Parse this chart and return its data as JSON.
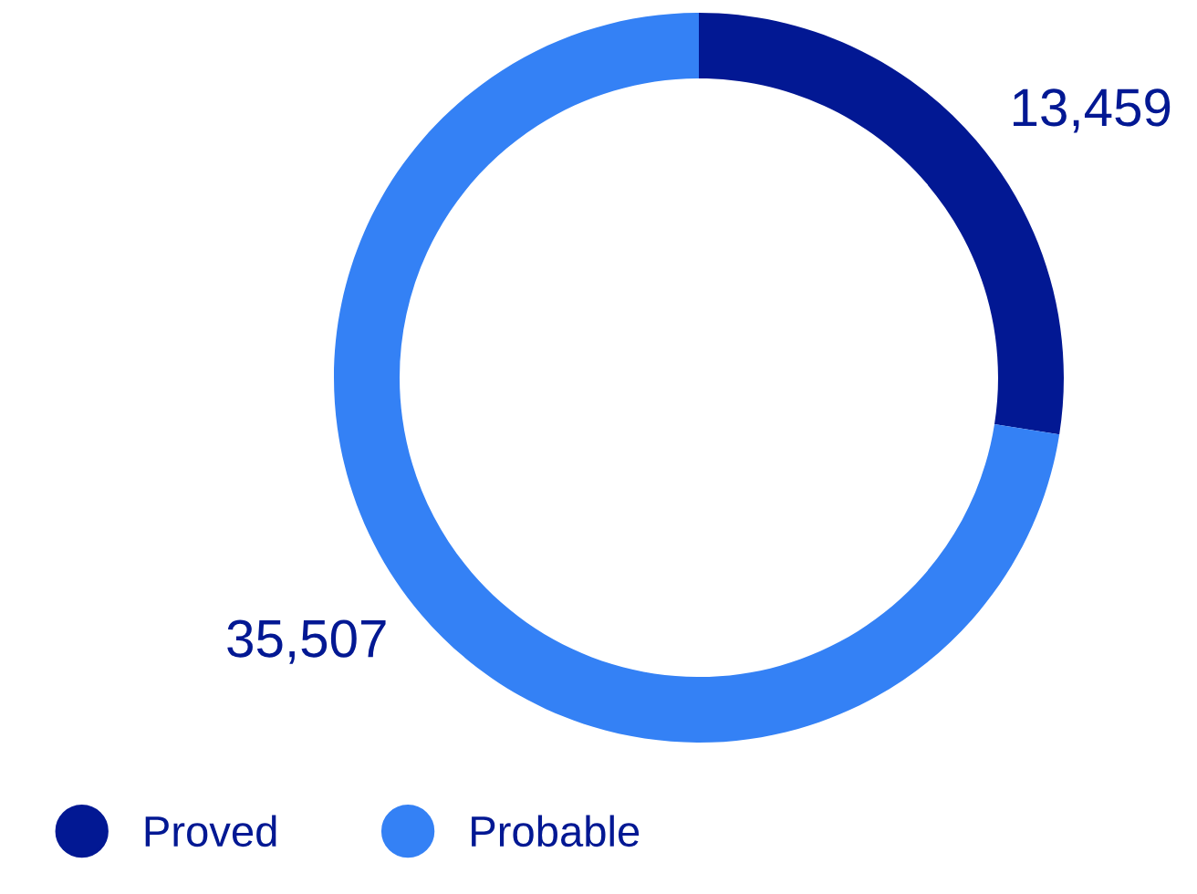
{
  "chart_data": {
    "type": "donut",
    "categories": [
      "Proved",
      "Probable"
    ],
    "values": [
      13459,
      35507
    ],
    "colors": [
      "#021893",
      "#3481f5"
    ],
    "value_labels": [
      "13,459",
      "35,507"
    ],
    "legend": "bottom left"
  }
}
